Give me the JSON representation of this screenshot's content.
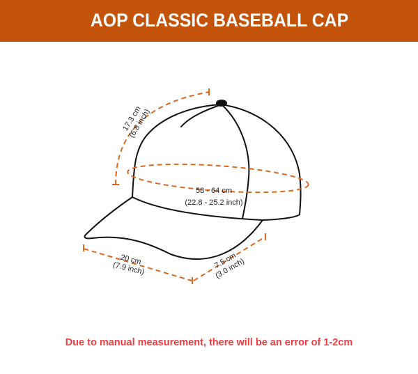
{
  "header": {
    "title": "AOP CLASSIC BASEBALL CAP"
  },
  "measurements": {
    "crown_depth": {
      "cm": "17.3 cm",
      "inch": "(6.8 inch)"
    },
    "head_circumference": {
      "cm": "58 - 64 cm",
      "inch": "(22.8 - 25.2 inch)"
    },
    "brim_width": {
      "cm": "20 cm",
      "inch": "(7.9 inch)"
    },
    "brim_length": {
      "cm": "7.5 cm",
      "inch": "(3.0 inch)"
    }
  },
  "note": "Due to manual measurement, there will be an error of 1-2cm",
  "colors": {
    "header": "#c4530a",
    "dimension_lines": "#d9691f",
    "note": "#f03c3f"
  }
}
